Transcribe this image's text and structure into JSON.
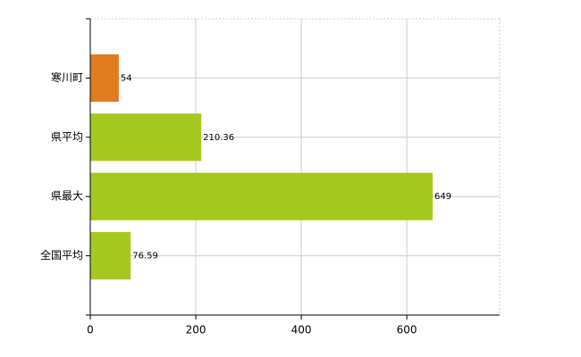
{
  "chart_data": {
    "type": "hbar",
    "categories": [
      "寒川町",
      "県平均",
      "県最大",
      "全国平均"
    ],
    "values": [
      54,
      210.36,
      649,
      76.59
    ],
    "colors": [
      "#e07b20",
      "#a6c81e",
      "#a6c81e",
      "#a6c81e"
    ],
    "xlim": [
      0,
      776
    ],
    "xticks": [
      0,
      200,
      400,
      600
    ],
    "grid": true
  }
}
